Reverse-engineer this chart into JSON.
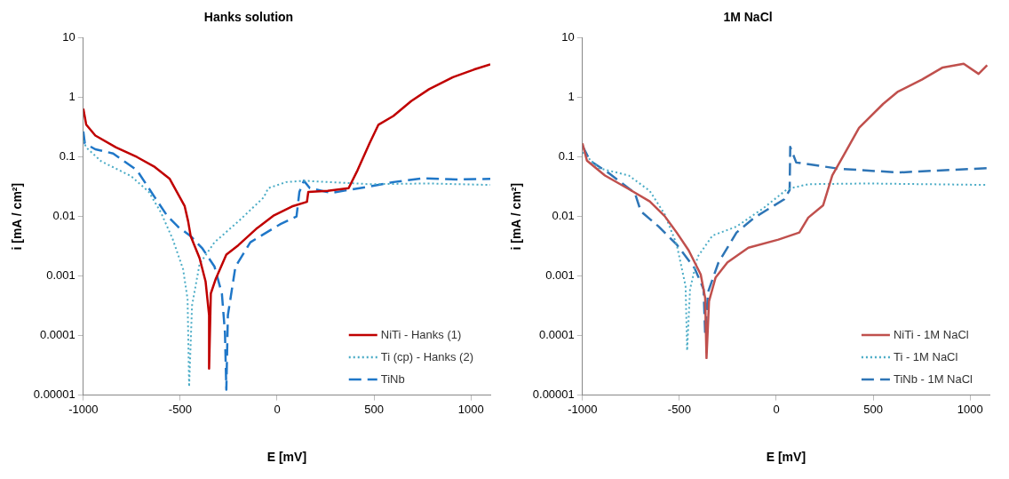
{
  "chart_data": [
    {
      "type": "line",
      "title": "Hanks solution",
      "xlabel": "E [mV]",
      "ylabel": "i [mA / cm²]",
      "log": "y",
      "grid": false,
      "legend": "bottom right",
      "xlim": [
        -1000,
        1100
      ],
      "xticks": [
        -1000,
        -500,
        0,
        500,
        1000
      ],
      "ylim": [
        1e-05,
        10
      ],
      "yticks": [
        {
          "value": 1e-05,
          "label": "0.00001"
        },
        0.0001,
        0.001,
        0.01,
        0.1,
        1,
        10
      ],
      "series": [
        {
          "name": "NiTi - Hanks (1)",
          "color": "#c00000",
          "line_style": "solid",
          "x": [
            -1000,
            -985,
            -938,
            -831,
            -723,
            -631,
            -554,
            -477,
            -459,
            -446,
            -400,
            -369,
            -351,
            -351,
            -342,
            -316,
            -262,
            -200,
            -108,
            -16,
            77,
            154,
            161,
            261,
            369,
            415,
            477,
            523,
            600,
            692,
            784,
            907,
            1015,
            1100
          ],
          "values": [
            0.65,
            0.35,
            0.23,
            0.145,
            0.1,
            0.068,
            0.043,
            0.015,
            0.0083,
            0.0047,
            0.002,
            0.00081,
            0.00022,
            2.8e-05,
            0.00051,
            0.00091,
            0.0023,
            0.0033,
            0.0062,
            0.0105,
            0.0148,
            0.0177,
            0.026,
            0.027,
            0.03,
            0.06,
            0.17,
            0.35,
            0.49,
            0.87,
            1.38,
            2.2,
            2.95,
            3.6
          ]
        },
        {
          "name": "Ti (cp) - Hanks (2)",
          "color": "#4bacc6",
          "line_style": "dotted",
          "x": [
            -1000,
            -985,
            -908,
            -754,
            -662,
            -600,
            -539,
            -485,
            -462,
            -454,
            -439,
            -400,
            -323,
            -200,
            -69,
            -46,
            46,
            138,
            477,
            784,
            1100
          ],
          "values": [
            0.19,
            0.145,
            0.085,
            0.048,
            0.026,
            0.0118,
            0.0042,
            0.0013,
            0.00041,
            1.38e-05,
            0.00032,
            0.0016,
            0.0037,
            0.0083,
            0.021,
            0.03,
            0.038,
            0.04,
            0.035,
            0.036,
            0.034
          ]
        },
        {
          "name": "TiNb",
          "color": "#1f77c8",
          "line_style": "dashed",
          "x": [
            -1000,
            -992,
            -938,
            -846,
            -723,
            -631,
            -569,
            -508,
            -446,
            -385,
            -323,
            -285,
            -269,
            -262,
            -254,
            -215,
            -138,
            15,
            100,
            115,
            138,
            169,
            277,
            477,
            600,
            754,
            938,
            1100
          ],
          "values": [
            0.27,
            0.17,
            0.135,
            0.115,
            0.06,
            0.021,
            0.0105,
            0.0066,
            0.0047,
            0.0029,
            0.00144,
            0.00051,
            0.000112,
            1.23e-05,
            0.00022,
            0.00144,
            0.0037,
            0.0074,
            0.01,
            0.026,
            0.04,
            0.03,
            0.025,
            0.032,
            0.038,
            0.044,
            0.042,
            0.043
          ]
        }
      ]
    },
    {
      "type": "line",
      "title": "1M NaCl",
      "xlabel": "E [mV]",
      "ylabel": "i [mA / cm²]",
      "log": "y",
      "grid": false,
      "legend": "bottom right",
      "xlim": [
        -1000,
        1100
      ],
      "xticks": [
        -1000,
        -500,
        0,
        500,
        1000
      ],
      "ylim": [
        1e-05,
        10
      ],
      "yticks": [
        {
          "value": 1e-05,
          "label": "0.00001"
        },
        0.0001,
        0.001,
        0.01,
        0.1,
        1,
        10
      ],
      "series": [
        {
          "name": "NiTi - 1M NaCl",
          "color": "#c0504d",
          "line_style": "solid",
          "x": [
            -1000,
            -977,
            -884,
            -761,
            -653,
            -576,
            -514,
            -452,
            -390,
            -367,
            -360,
            -347,
            -313,
            -252,
            -144,
            11,
            119,
            165,
            242,
            289,
            350,
            427,
            551,
            628,
            751,
            859,
            967,
            1044,
            1088
          ],
          "values": [
            0.17,
            0.087,
            0.049,
            0.029,
            0.018,
            0.0102,
            0.0054,
            0.0027,
            0.00107,
            0.00043,
            4.2e-05,
            0.00038,
            0.00095,
            0.0017,
            0.003,
            0.0041,
            0.0054,
            0.0096,
            0.0155,
            0.049,
            0.11,
            0.31,
            0.78,
            1.26,
            2.0,
            3.2,
            3.7,
            2.5,
            3.5
          ]
        },
        {
          "name": "Ti - 1M NaCl",
          "color": "#4bacc6",
          "line_style": "dotted",
          "x": [
            -1000,
            -915,
            -761,
            -653,
            -576,
            -514,
            -468,
            -460,
            -445,
            -406,
            -329,
            -205,
            -67,
            57,
            165,
            474,
            1088
          ],
          "values": [
            0.12,
            0.065,
            0.049,
            0.027,
            0.011,
            0.0034,
            0.00068,
            5.6e-05,
            0.0006,
            0.0021,
            0.0048,
            0.0068,
            0.0138,
            0.029,
            0.035,
            0.036,
            0.034
          ]
        },
        {
          "name": "TiNb - 1M NaCl",
          "color": "#2e75b6",
          "line_style": "dashed",
          "x": [
            -1000,
            -961,
            -869,
            -730,
            -699,
            -607,
            -514,
            -421,
            -375,
            -367,
            -352,
            -298,
            -205,
            -113,
            41,
            69,
            72,
            103,
            319,
            628,
            1088
          ],
          "values": [
            0.155,
            0.087,
            0.055,
            0.025,
            0.0123,
            0.0068,
            0.0034,
            0.00135,
            0.0006,
            0.000107,
            0.00054,
            0.0017,
            0.0054,
            0.0096,
            0.0195,
            0.028,
            0.148,
            0.081,
            0.064,
            0.055,
            0.065
          ]
        }
      ]
    }
  ]
}
